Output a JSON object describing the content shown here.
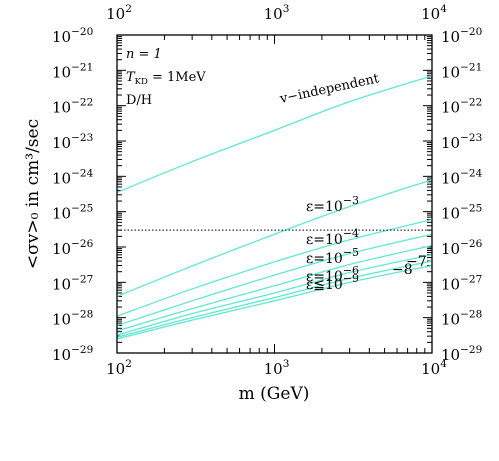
{
  "chart_data": {
    "type": "line",
    "xlabel": "m (GeV)",
    "ylabel": "<σv>₀ in cm³/sec",
    "x_scale": "log",
    "y_scale": "log",
    "xlim": [
      100,
      10000
    ],
    "ylim": [
      1e-29,
      1e-20
    ],
    "x_ticks": [
      {
        "value": 100,
        "base": "10",
        "exp": "2"
      },
      {
        "value": 1000,
        "base": "10",
        "exp": "3"
      },
      {
        "value": 10000,
        "base": "10",
        "exp": "4"
      }
    ],
    "y_ticks": [
      {
        "value": 1e-20,
        "base": "10",
        "exp": "−20"
      },
      {
        "value": 1e-21,
        "base": "10",
        "exp": "−21"
      },
      {
        "value": 1e-22,
        "base": "10",
        "exp": "−22"
      },
      {
        "value": 1e-23,
        "base": "10",
        "exp": "−23"
      },
      {
        "value": 1e-24,
        "base": "10",
        "exp": "−24"
      },
      {
        "value": 1e-25,
        "base": "10",
        "exp": "−25"
      },
      {
        "value": 1e-26,
        "base": "10",
        "exp": "−26"
      },
      {
        "value": 1e-27,
        "base": "10",
        "exp": "−27"
      },
      {
        "value": 1e-28,
        "base": "10",
        "exp": "−28"
      },
      {
        "value": 1e-29,
        "base": "10",
        "exp": "−29"
      }
    ],
    "annotations": {
      "n": "n = 1",
      "t_kd": "T",
      "t_kd_sub": "KD",
      "t_kd_value": " = 1MeV",
      "constraint": "D/H"
    },
    "reference_line": {
      "y": 3e-26,
      "style": "dotted"
    },
    "series": [
      {
        "name": "v−independent",
        "label_text": "v−independent",
        "x": [
          100,
          300,
          1000,
          3000,
          10000
        ],
        "y": [
          3.5e-25,
          2.6e-24,
          2e-23,
          1.3e-22,
          7e-22
        ]
      },
      {
        "name": "ε=10−3",
        "label_text": "ε=10",
        "label_exp": "−3",
        "x": [
          100,
          300,
          1000,
          3000,
          10000
        ],
        "y": [
          4e-28,
          2.9e-27,
          2.3e-26,
          1.4e-25,
          8e-25
        ]
      },
      {
        "name": "ε=10−4",
        "label_text": "ε=10",
        "label_exp": "−4",
        "x": [
          100,
          300,
          1000,
          3000,
          10000
        ],
        "y": [
          1.1e-28,
          6.5e-28,
          3.8e-27,
          1.6e-26,
          6e-26
        ]
      },
      {
        "name": "ε=10−5",
        "label_text": "ε=10",
        "label_exp": "−5",
        "x": [
          100,
          300,
          1000,
          3000,
          10000
        ],
        "y": [
          6e-29,
          3e-28,
          1.6e-27,
          6.5e-27,
          2.3e-26
        ]
      },
      {
        "name": "ε=10−6",
        "label_text": "ε=10",
        "label_exp": "−6",
        "x": [
          100,
          300,
          1000,
          3000,
          10000
        ],
        "y": [
          4.2e-29,
          1.8e-28,
          8e-28,
          3.2e-27,
          1.1e-26
        ]
      },
      {
        "name": "−7",
        "label_text": "−7",
        "x": [
          100,
          300,
          1000,
          3000,
          10000
        ],
        "y": [
          3.2e-29,
          1.3e-28,
          5e-28,
          1.9e-27,
          6e-27
        ]
      },
      {
        "name": "−8",
        "label_text": "−8",
        "x": [
          100,
          300,
          1000,
          3000,
          10000
        ],
        "y": [
          2.8e-29,
          1e-28,
          3.7e-28,
          1.3e-27,
          4e-27
        ]
      },
      {
        "name": "ε≦10−9",
        "label_text": "ε≦10",
        "label_exp": "−9",
        "x": [
          100,
          300,
          1000,
          3000,
          10000
        ],
        "y": [
          2.5e-29,
          8.5e-29,
          3e-28,
          1e-27,
          3e-27
        ]
      }
    ],
    "line_color": "#5fe8d2",
    "grid": false,
    "legend": "none"
  }
}
